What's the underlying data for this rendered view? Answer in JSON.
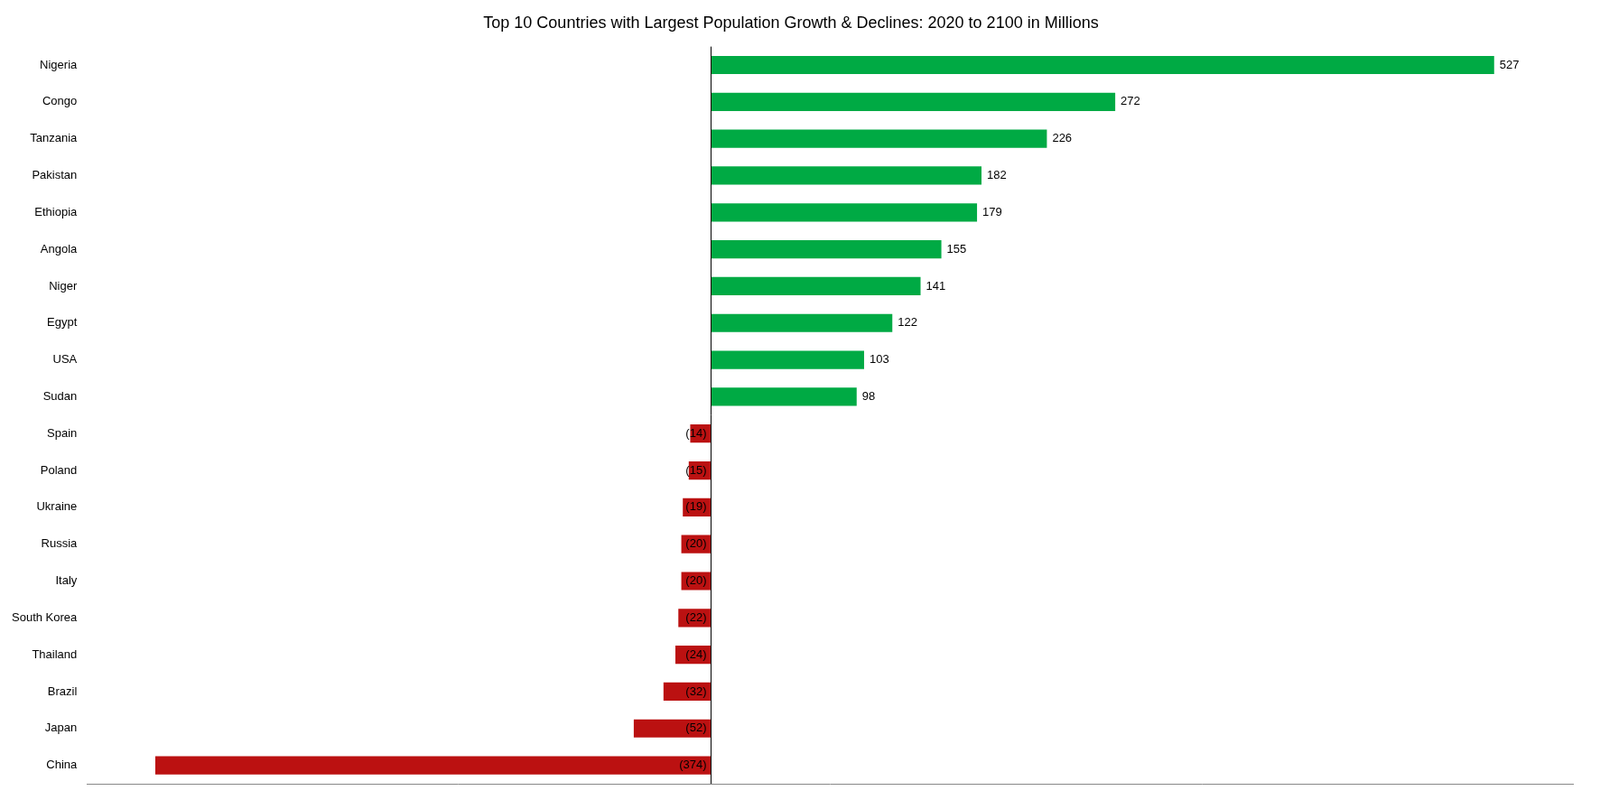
{
  "chart_data": {
    "type": "bar",
    "orientation": "horizontal",
    "title": "Top 10 Countries with Largest Population Growth & Declines: 2020 to 2100 in Millions",
    "categories": [
      "Nigeria",
      "Congo",
      "Tanzania",
      "Pakistan",
      "Ethiopia",
      "Angola",
      "Niger",
      "Egypt",
      "USA",
      "Sudan",
      "Spain",
      "Poland",
      "Ukraine",
      "Russia",
      "Italy",
      "South Korea",
      "Thailand",
      "Brazil",
      "Japan",
      "China"
    ],
    "values": [
      527,
      272,
      226,
      182,
      179,
      155,
      141,
      122,
      103,
      98,
      -14,
      -15,
      -19,
      -20,
      -20,
      -22,
      -24,
      -32,
      -52,
      -374
    ],
    "value_labels": [
      "527",
      "272",
      "226",
      "182",
      "179",
      "155",
      "141",
      "122",
      "103",
      "98",
      "(14)",
      "(15)",
      "(19)",
      "(20)",
      "(20)",
      "(22)",
      "(24)",
      "(32)",
      "(52)",
      "(374)"
    ],
    "colors": [
      "#00aa44",
      "#00aa44",
      "#00aa44",
      "#00aa44",
      "#00aa44",
      "#00aa44",
      "#00aa44",
      "#00aa44",
      "#00aa44",
      "#00aa44",
      "#bb1111",
      "#bb1111",
      "#bb1111",
      "#bb1111",
      "#bb1111",
      "#bb1111",
      "#bb1111",
      "#bb1111",
      "#bb1111",
      "#bb1111"
    ],
    "xlim": [
      -420,
      580
    ],
    "grid": false,
    "data_labels": true,
    "tick_labels": "y"
  }
}
